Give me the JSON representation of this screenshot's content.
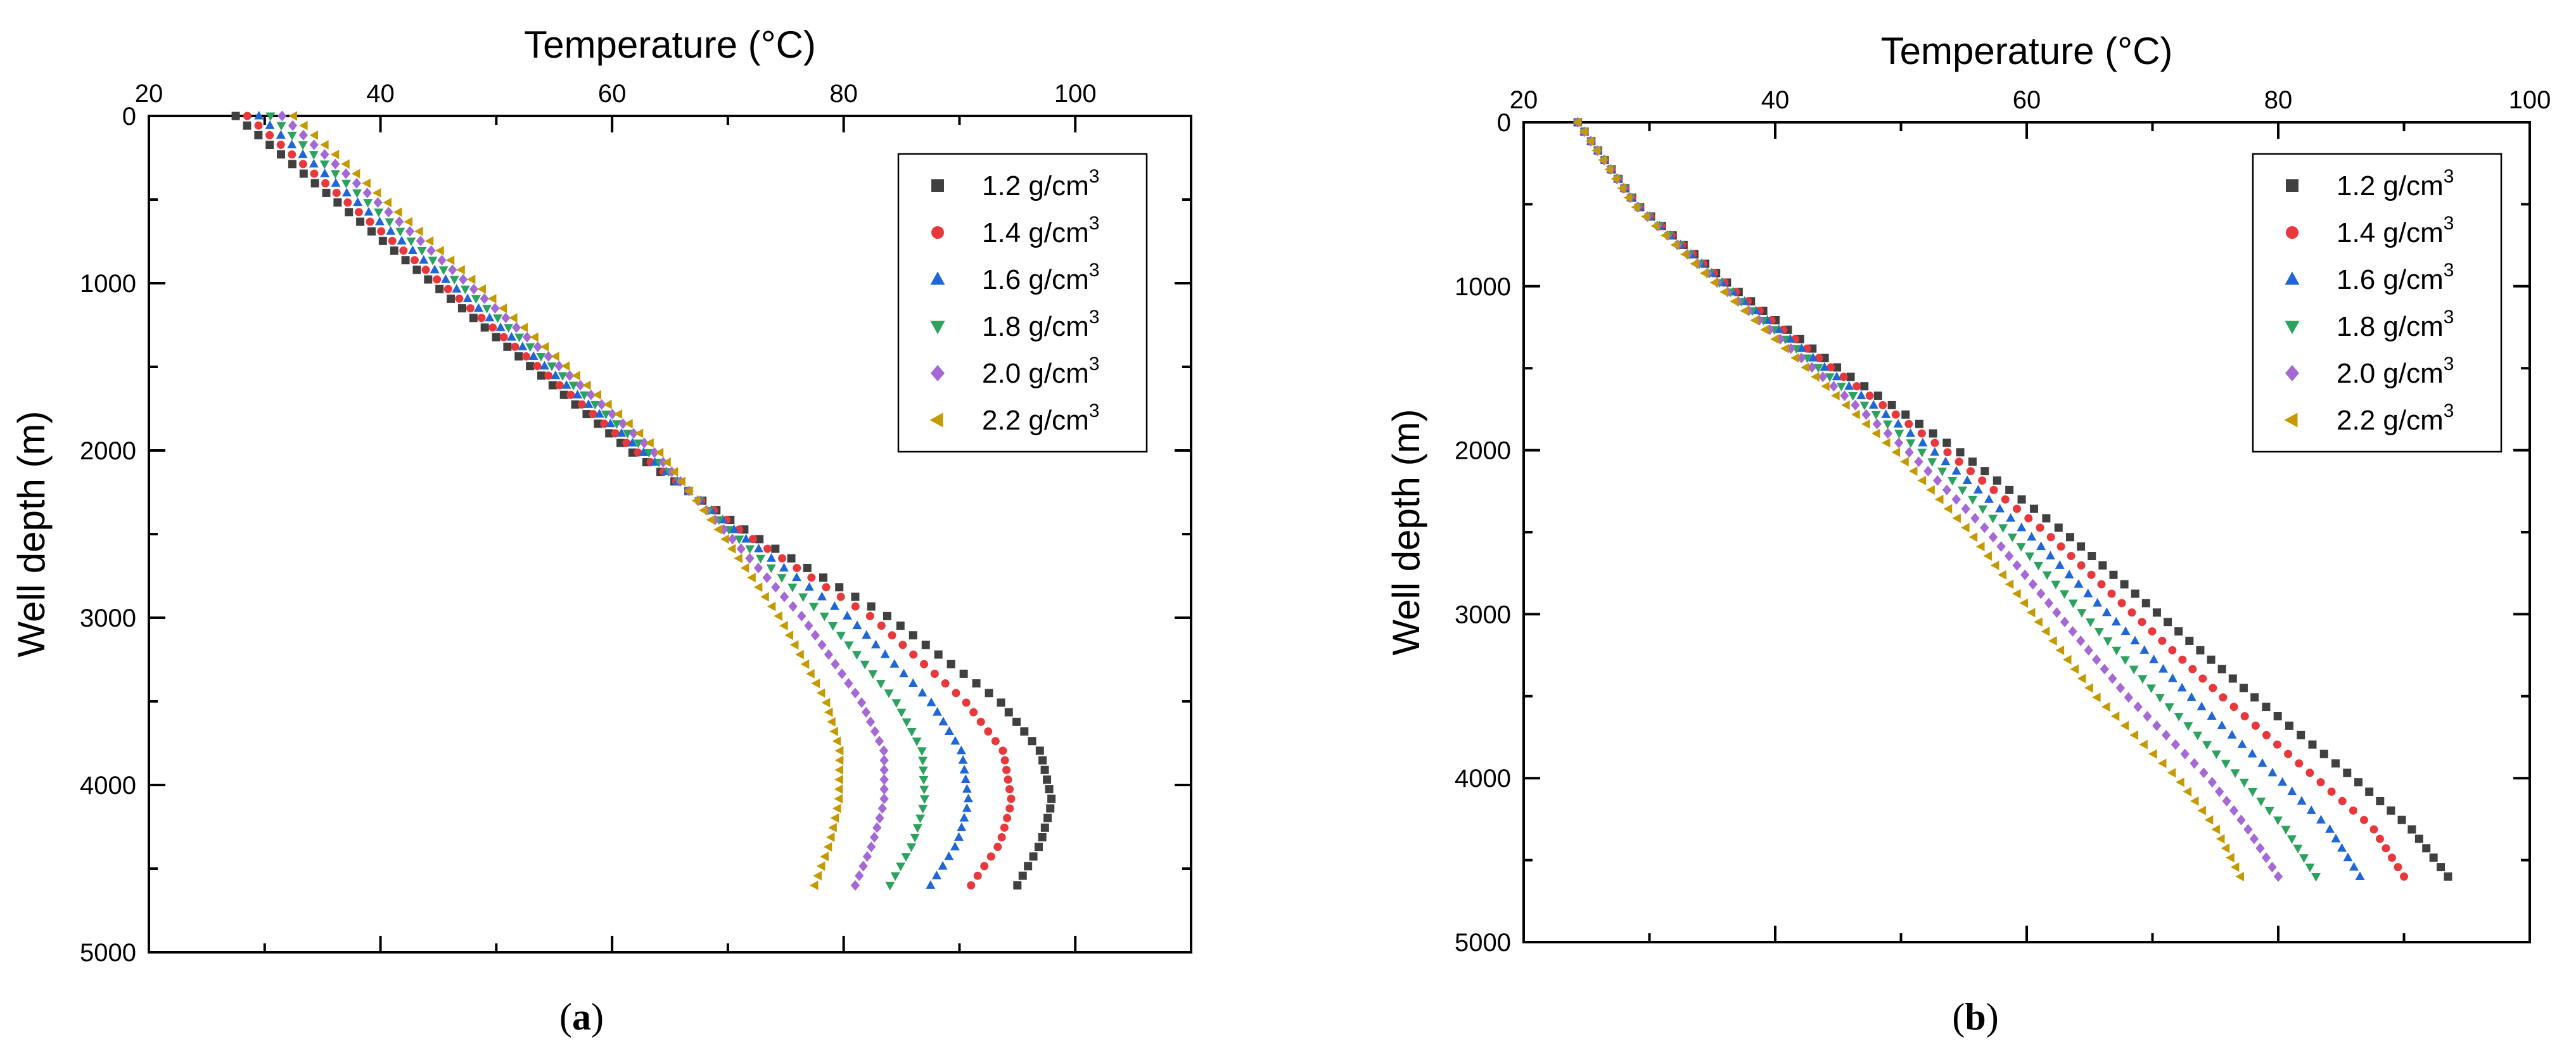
{
  "chart_data": [
    {
      "type": "scatter",
      "panel_label": "(a)",
      "panel_letter": "a",
      "xlabel": "Temperature (°C)",
      "ylabel": "Well depth (m)",
      "xlim": [
        20,
        110
      ],
      "ylim": [
        0,
        5000
      ],
      "y_inverted": true,
      "x_ticks": [
        20,
        40,
        60,
        80,
        100
      ],
      "y_ticks": [
        0,
        1000,
        2000,
        3000,
        4000,
        5000
      ],
      "legend_position": "top-right",
      "depth_range": [
        0,
        4600
      ],
      "series": [
        {
          "name": "1.2 g/cm3",
          "label": "1.2 g/cm",
          "sup": "3",
          "marker": "square",
          "color": "#404040",
          "profile": [
            [
              0,
              27.5
            ],
            [
              2000,
              61.5
            ],
            [
              2500,
              72.0
            ],
            [
              3000,
              84.0
            ],
            [
              3500,
              93.5
            ],
            [
              3800,
              97.0
            ],
            [
              4100,
              98.0
            ],
            [
              4350,
              97.0
            ],
            [
              4600,
              95.0
            ]
          ]
        },
        {
          "name": "1.4 g/cm3",
          "label": "1.4 g/cm",
          "sup": "3",
          "marker": "circle",
          "color": "#e8383b",
          "profile": [
            [
              0,
              28.5
            ],
            [
              2000,
              62.0
            ],
            [
              2500,
              71.5
            ],
            [
              3000,
              82.5
            ],
            [
              3500,
              90.5
            ],
            [
              3800,
              93.8
            ],
            [
              4100,
              94.5
            ],
            [
              4350,
              93.5
            ],
            [
              4600,
              91.0
            ]
          ]
        },
        {
          "name": "1.6 g/cm3",
          "label": "1.6 g/cm",
          "sup": "3",
          "marker": "triangle-up",
          "color": "#1f66d6",
          "profile": [
            [
              0,
              29.5
            ],
            [
              2000,
              62.5
            ],
            [
              2500,
              71.0
            ],
            [
              3000,
              80.5
            ],
            [
              3500,
              87.5
            ],
            [
              3800,
              90.2
            ],
            [
              4100,
              90.8
            ],
            [
              4350,
              89.8
            ],
            [
              4600,
              87.5
            ]
          ]
        },
        {
          "name": "1.8 g/cm3",
          "label": "1.8 g/cm",
          "sup": "3",
          "marker": "triangle-down",
          "color": "#2ca25f",
          "profile": [
            [
              0,
              30.5
            ],
            [
              2000,
              63.0
            ],
            [
              2500,
              70.5
            ],
            [
              3000,
              78.5
            ],
            [
              3500,
              84.5
            ],
            [
              3800,
              86.8
            ],
            [
              4100,
              87.0
            ],
            [
              4350,
              86.0
            ],
            [
              4600,
              84.0
            ]
          ]
        },
        {
          "name": "2.0 g/cm3",
          "label": "2.0 g/cm",
          "sup": "3",
          "marker": "diamond",
          "color": "#a569d6",
          "profile": [
            [
              0,
              31.5
            ],
            [
              2000,
              63.5
            ],
            [
              2500,
              70.0
            ],
            [
              3000,
              76.5
            ],
            [
              3500,
              81.5
            ],
            [
              3800,
              83.5
            ],
            [
              4100,
              83.5
            ],
            [
              4350,
              82.5
            ],
            [
              4600,
              81.0
            ]
          ]
        },
        {
          "name": "2.2 g/cm3",
          "label": "2.2 g/cm",
          "sup": "3",
          "marker": "triangle-left",
          "color": "#c49a00",
          "profile": [
            [
              0,
              32.5
            ],
            [
              2000,
              64.0
            ],
            [
              2500,
              69.5
            ],
            [
              3000,
              74.5
            ],
            [
              3500,
              78.5
            ],
            [
              3800,
              79.7
            ],
            [
              4100,
              79.6
            ],
            [
              4350,
              78.8
            ],
            [
              4600,
              77.5
            ]
          ]
        }
      ]
    },
    {
      "type": "scatter",
      "panel_label": "(b)",
      "panel_letter": "b",
      "xlabel": "Temperature (°C)",
      "ylabel": "Well depth (m)",
      "xlim": [
        20,
        100
      ],
      "ylim": [
        0,
        5000
      ],
      "y_inverted": true,
      "x_ticks": [
        20,
        40,
        60,
        80,
        100
      ],
      "y_ticks": [
        0,
        1000,
        2000,
        3000,
        4000,
        5000
      ],
      "legend_position": "top-right",
      "depth_range": [
        0,
        4600
      ],
      "series": [
        {
          "name": "1.2 g/cm3",
          "label": "1.2 g/cm",
          "sup": "3",
          "marker": "square",
          "color": "#404040",
          "profile": [
            [
              0,
              24.3
            ],
            [
              500,
              29.0
            ],
            [
              1000,
              36.5
            ],
            [
              1500,
              45.0
            ],
            [
              2000,
              54.5
            ],
            [
              2500,
              63.0
            ],
            [
              3000,
              70.5
            ],
            [
              3500,
              78.0
            ],
            [
              4000,
              86.0
            ],
            [
              4300,
              90.5
            ],
            [
              4600,
              93.5
            ]
          ]
        },
        {
          "name": "1.4 g/cm3",
          "label": "1.4 g/cm",
          "sup": "3",
          "marker": "circle",
          "color": "#e8383b",
          "profile": [
            [
              0,
              24.3
            ],
            [
              500,
              29.0
            ],
            [
              1000,
              36.3
            ],
            [
              1500,
              44.5
            ],
            [
              2000,
              53.5
            ],
            [
              2500,
              61.5
            ],
            [
              3000,
              68.5
            ],
            [
              3500,
              75.5
            ],
            [
              4000,
              83.0
            ],
            [
              4300,
              87.5
            ],
            [
              4600,
              90.0
            ]
          ]
        },
        {
          "name": "1.6 g/cm3",
          "label": "1.6 g/cm",
          "sup": "3",
          "marker": "triangle-up",
          "color": "#1f66d6",
          "profile": [
            [
              0,
              24.3
            ],
            [
              500,
              28.9
            ],
            [
              1000,
              36.1
            ],
            [
              1500,
              44.0
            ],
            [
              2000,
              52.5
            ],
            [
              2500,
              60.0
            ],
            [
              3000,
              66.5
            ],
            [
              3500,
              73.0
            ],
            [
              4000,
              80.0
            ],
            [
              4300,
              84.0
            ],
            [
              4600,
              86.5
            ]
          ]
        },
        {
          "name": "1.8 g/cm3",
          "label": "1.8 g/cm",
          "sup": "3",
          "marker": "triangle-down",
          "color": "#2ca25f",
          "profile": [
            [
              0,
              24.3
            ],
            [
              500,
              28.9
            ],
            [
              1000,
              35.9
            ],
            [
              1500,
              43.5
            ],
            [
              2000,
              51.5
            ],
            [
              2500,
              58.5
            ],
            [
              3000,
              64.5
            ],
            [
              3500,
              70.5
            ],
            [
              4000,
              77.0
            ],
            [
              4300,
              80.5
            ],
            [
              4600,
              83.0
            ]
          ]
        },
        {
          "name": "2.0 g/cm3",
          "label": "2.0 g/cm",
          "sup": "3",
          "marker": "diamond",
          "color": "#a569d6",
          "profile": [
            [
              0,
              24.3
            ],
            [
              500,
              28.8
            ],
            [
              1000,
              35.7
            ],
            [
              1500,
              43.0
            ],
            [
              2000,
              50.5
            ],
            [
              2500,
              57.0
            ],
            [
              3000,
              62.5
            ],
            [
              3500,
              68.0
            ],
            [
              4000,
              74.5
            ],
            [
              4300,
              77.5
            ],
            [
              4600,
              80.0
            ]
          ]
        },
        {
          "name": "2.2 g/cm3",
          "label": "2.2 g/cm",
          "sup": "3",
          "marker": "triangle-left",
          "color": "#c49a00",
          "profile": [
            [
              0,
              24.3
            ],
            [
              500,
              28.7
            ],
            [
              1000,
              35.5
            ],
            [
              1500,
              42.5
            ],
            [
              2000,
              49.5
            ],
            [
              2500,
              55.5
            ],
            [
              3000,
              60.5
            ],
            [
              3500,
              65.5
            ],
            [
              4000,
              72.0
            ],
            [
              4300,
              75.0
            ],
            [
              4600,
              77.0
            ]
          ]
        }
      ]
    }
  ]
}
